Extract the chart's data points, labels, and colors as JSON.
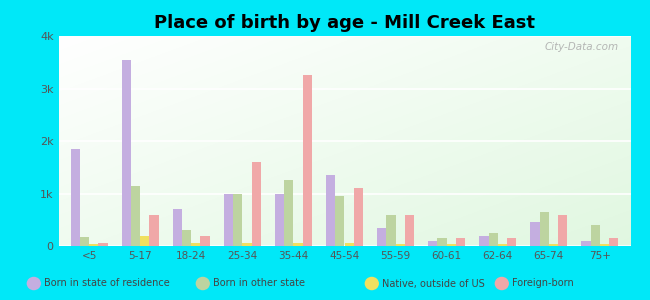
{
  "title": "Place of birth by age - Mill Creek East",
  "categories": [
    "<5",
    "5-17",
    "18-24",
    "25-34",
    "35-44",
    "45-54",
    "55-59",
    "60-61",
    "62-64",
    "65-74",
    "75+"
  ],
  "series": {
    "Born in state of residence": [
      1850,
      3550,
      700,
      1000,
      1000,
      1350,
      350,
      100,
      200,
      450,
      100
    ],
    "Born in other state": [
      180,
      1150,
      300,
      1000,
      1250,
      950,
      600,
      150,
      250,
      650,
      400
    ],
    "Native, outside of US": [
      30,
      200,
      50,
      50,
      50,
      50,
      30,
      30,
      30,
      30,
      30
    ],
    "Foreign-born": [
      50,
      600,
      200,
      1600,
      3250,
      1100,
      600,
      150,
      150,
      600,
      150
    ]
  },
  "colors": {
    "Born in state of residence": "#c4aee0",
    "Born in other state": "#bdd4a0",
    "Native, outside of US": "#f0e060",
    "Foreign-born": "#f0a8a8"
  },
  "ylim": [
    0,
    4000
  ],
  "yticks": [
    0,
    1000,
    2000,
    3000,
    4000
  ],
  "ytick_labels": [
    "0",
    "1k",
    "2k",
    "3k",
    "4k"
  ],
  "outer_background": "#00e8f8",
  "bar_width": 0.18,
  "watermark": "City-Data.com"
}
